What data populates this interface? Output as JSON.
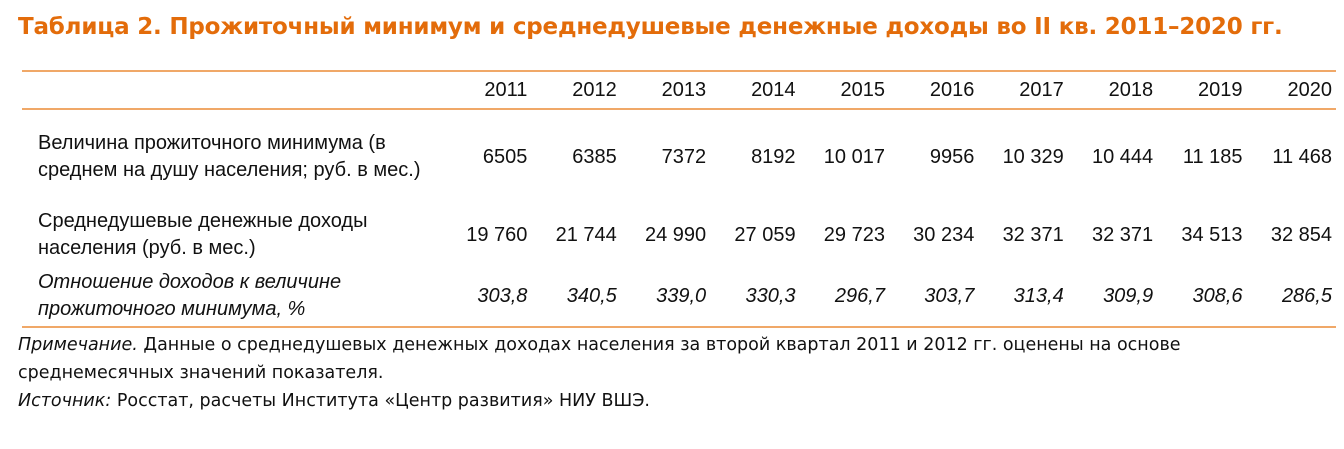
{
  "title": "Таблица 2. Прожиточный минимум и среднедушевые денежные доходы во II кв. 2011–2020 гг.",
  "table": {
    "years": [
      "2011",
      "2012",
      "2013",
      "2014",
      "2015",
      "2016",
      "2017",
      "2018",
      "2019",
      "2020"
    ],
    "rows": [
      {
        "label": "Величина прожиточного минимума (в среднем на душу населения; руб. в мес.)",
        "italic": false,
        "values": [
          "6505",
          "6385",
          "7372",
          "8192",
          "10 017",
          "9956",
          "10 329",
          "10 444",
          "11 185",
          "11 468"
        ]
      },
      {
        "label": "Среднедушевые денежные доходы населения (руб. в мес.)",
        "italic": false,
        "values": [
          "19 760",
          "21 744",
          "24 990",
          "27 059",
          "29 723",
          "30 234",
          "32 371",
          "32 371",
          "34 513",
          "32 854"
        ]
      },
      {
        "label": "Отношение доходов к величине прожиточного минимума, %",
        "italic": true,
        "values": [
          "303,8",
          "340,5",
          "339,0",
          "330,3",
          "296,7",
          "303,7",
          "313,4",
          "309,9",
          "308,6",
          "286,5"
        ]
      }
    ]
  },
  "note": {
    "label": "Примечание.",
    "text": "Данные о среднедушевых денежных доходах населения за второй квартал 2011 и 2012 гг. оценены на основе среднемесячных значений показателя."
  },
  "source": {
    "label": "Источник:",
    "text": "Росстат, расчеты Института «Центр развития» НИУ ВШЭ."
  },
  "colors": {
    "title": "#e36c0a",
    "rule": "#f0a868"
  }
}
